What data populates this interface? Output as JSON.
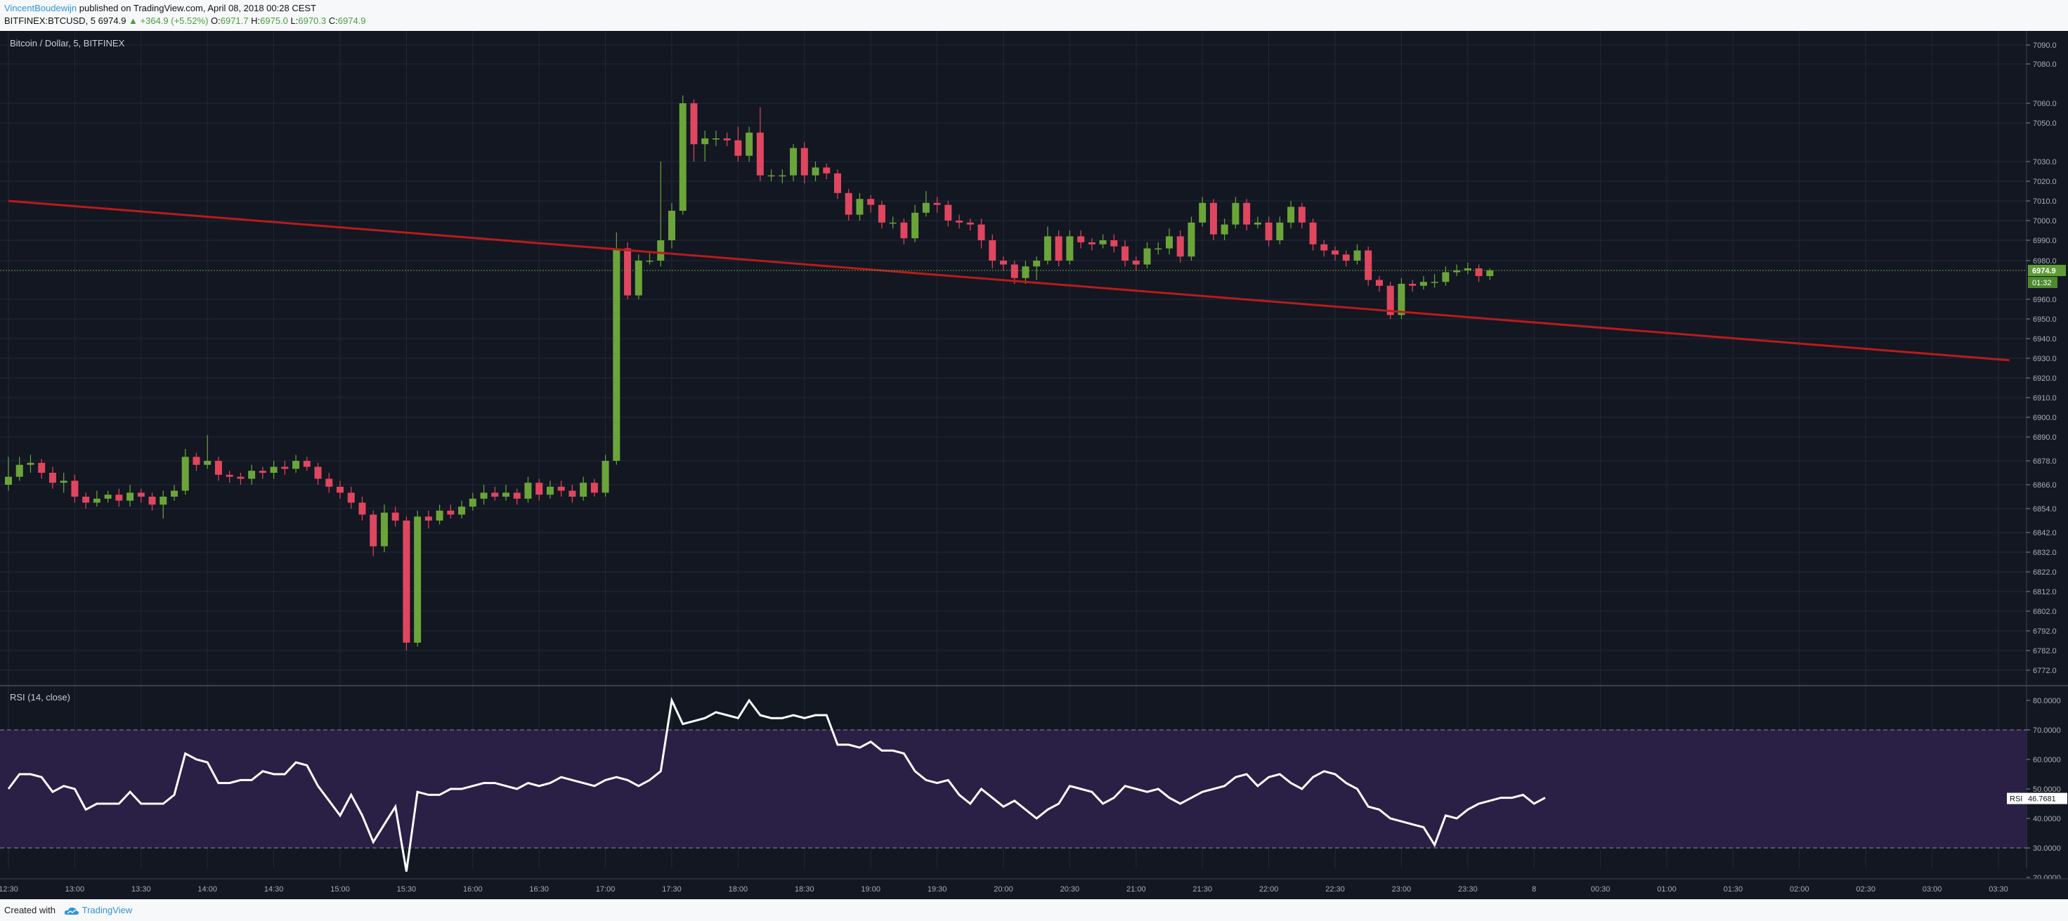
{
  "header": {
    "author": "VincentBoudewijn",
    "published": "published on TradingView.com, April 08, 2018 00:28 CEST",
    "symbol_line": "BITFINEX:BTCUSD, 5",
    "last": "6974.9",
    "change": "▲ +364.9 (+5.52%)",
    "o_label": "O:",
    "o_value": "6971.7",
    "h_label": "H:",
    "h_value": "6975.0",
    "l_label": "L:",
    "l_value": "6970.3",
    "c_label": "C:",
    "c_value": "6974.9"
  },
  "footer": {
    "created_with": "Created with",
    "brand": "TradingView"
  },
  "colors": {
    "background": "#131722",
    "up": "#6ba539",
    "down": "#e0465f",
    "trendline": "#b71c1c",
    "rsi_band": "#2a1f45",
    "rsi_line": "#ffffff"
  },
  "chart_data": [
    {
      "type": "candlestick",
      "title": "Bitcoin / Dollar, 5, BITFINEX",
      "x_ticks": [
        "12:30",
        "13:00",
        "13:30",
        "14:00",
        "14:30",
        "15:00",
        "15:30",
        "16:00",
        "16:30",
        "17:00",
        "17:30",
        "18:00",
        "18:30",
        "19:00",
        "19:30",
        "20:00",
        "20:30",
        "21:00",
        "21:30",
        "22:00",
        "22:30",
        "23:00",
        "23:30",
        "8",
        "00:30",
        "01:00",
        "01:30",
        "02:00",
        "02:30",
        "03:00",
        "03:30"
      ],
      "y_ticks": [
        "7090.0",
        "7080.0",
        "7060.0",
        "7050.0",
        "7030.0",
        "7020.0",
        "7010.0",
        "7000.0",
        "6990.0",
        "6980.0",
        "6960.0",
        "6950.0",
        "6940.0",
        "6930.0",
        "6920.0",
        "6910.0",
        "6900.0",
        "6890.0",
        "6878.0",
        "6866.0",
        "6854.0",
        "6842.0",
        "6832.0",
        "6822.0",
        "6812.0",
        "6802.0",
        "6792.0",
        "6782.0",
        "6772.0"
      ],
      "last_price_label": "6974.9",
      "countdown_label": "01:32",
      "trendline": {
        "start": {
          "x": "12:30",
          "y": 7010
        },
        "end": {
          "x": "03:35",
          "y": 6929
        }
      },
      "candles": [
        [
          6866,
          6870,
          6880,
          6863
        ],
        [
          6870,
          6876,
          6880,
          6868
        ],
        [
          6876,
          6877,
          6881,
          6872
        ],
        [
          6877,
          6872,
          6879,
          6869
        ],
        [
          6872,
          6867,
          6875,
          6864
        ],
        [
          6867,
          6868,
          6872,
          6862
        ],
        [
          6868,
          6860,
          6871,
          6857
        ],
        [
          6860,
          6857,
          6862,
          6854
        ],
        [
          6857,
          6859,
          6863,
          6855
        ],
        [
          6859,
          6861,
          6863,
          6857
        ],
        [
          6861,
          6858,
          6864,
          6855
        ],
        [
          6858,
          6862,
          6866,
          6855
        ],
        [
          6862,
          6860,
          6864,
          6857
        ],
        [
          6860,
          6856,
          6862,
          6853
        ],
        [
          6856,
          6860,
          6863,
          6849
        ],
        [
          6860,
          6863,
          6866,
          6858
        ],
        [
          6863,
          6880,
          6884,
          6861
        ],
        [
          6880,
          6876,
          6882,
          6873
        ],
        [
          6876,
          6878,
          6891,
          6874
        ],
        [
          6878,
          6871,
          6880,
          6868
        ],
        [
          6871,
          6870,
          6873,
          6867
        ],
        [
          6870,
          6869,
          6872,
          6866
        ],
        [
          6869,
          6873,
          6876,
          6866
        ],
        [
          6873,
          6872,
          6875,
          6869
        ],
        [
          6872,
          6875,
          6878,
          6869
        ],
        [
          6875,
          6874,
          6878,
          6871
        ],
        [
          6874,
          6878,
          6881,
          6872
        ],
        [
          6878,
          6875,
          6880,
          6873
        ],
        [
          6875,
          6869,
          6877,
          6866
        ],
        [
          6869,
          6865,
          6872,
          6862
        ],
        [
          6865,
          6862,
          6868,
          6859
        ],
        [
          6862,
          6857,
          6865,
          6854
        ],
        [
          6857,
          6851,
          6860,
          6848
        ],
        [
          6851,
          6835,
          6853,
          6830
        ],
        [
          6835,
          6852,
          6856,
          6832
        ],
        [
          6852,
          6848,
          6855,
          6845
        ],
        [
          6848,
          6786,
          6850,
          6782
        ],
        [
          6786,
          6850,
          6853,
          6784
        ],
        [
          6850,
          6848,
          6853,
          6844
        ],
        [
          6848,
          6853,
          6856,
          6846
        ],
        [
          6853,
          6851,
          6856,
          6849
        ],
        [
          6851,
          6855,
          6858,
          6849
        ],
        [
          6855,
          6859,
          6862,
          6853
        ],
        [
          6859,
          6862,
          6866,
          6856
        ],
        [
          6862,
          6860,
          6865,
          6858
        ],
        [
          6860,
          6862,
          6866,
          6858
        ],
        [
          6862,
          6859,
          6864,
          6856
        ],
        [
          6859,
          6867,
          6870,
          6857
        ],
        [
          6867,
          6861,
          6869,
          6858
        ],
        [
          6861,
          6865,
          6868,
          6859
        ],
        [
          6865,
          6863,
          6868,
          6860
        ],
        [
          6863,
          6860,
          6866,
          6857
        ],
        [
          6860,
          6867,
          6870,
          6858
        ],
        [
          6867,
          6862,
          6869,
          6860
        ],
        [
          6862,
          6878,
          6881,
          6860
        ],
        [
          6878,
          6986,
          6994,
          6876
        ],
        [
          6986,
          6962,
          6989,
          6960
        ],
        [
          6962,
          6980,
          6983,
          6960
        ],
        [
          6980,
          6980,
          6984,
          6978
        ],
        [
          6980,
          6990,
          7030,
          6977
        ],
        [
          6990,
          7005,
          7009,
          6986
        ],
        [
          7005,
          7060,
          7064,
          7003
        ],
        [
          7060,
          7039,
          7062,
          7030
        ],
        [
          7039,
          7042,
          7046,
          7030
        ],
        [
          7042,
          7042,
          7046,
          7038
        ],
        [
          7042,
          7041,
          7045,
          7038
        ],
        [
          7041,
          7033,
          7048,
          7030
        ],
        [
          7033,
          7045,
          7048,
          7030
        ],
        [
          7045,
          7023,
          7058,
          7020
        ],
        [
          7023,
          7023,
          7026,
          7020
        ],
        [
          7023,
          7023,
          7026,
          7019
        ],
        [
          7023,
          7037,
          7039,
          7020
        ],
        [
          7037,
          7023,
          7040,
          7019
        ],
        [
          7023,
          7027,
          7030,
          7020
        ],
        [
          7027,
          7024,
          7029,
          7021
        ],
        [
          7024,
          7014,
          7026,
          7011
        ],
        [
          7014,
          7003,
          7016,
          7000
        ],
        [
          7003,
          7011,
          7014,
          7000
        ],
        [
          7011,
          7008,
          7013,
          7004
        ],
        [
          7008,
          6999,
          7010,
          6996
        ],
        [
          6999,
          6999,
          7002,
          6996
        ],
        [
          6999,
          6991,
          7001,
          6988
        ],
        [
          6991,
          7004,
          7008,
          6989
        ],
        [
          7004,
          7009,
          7015,
          7002
        ],
        [
          7009,
          7008,
          7012,
          7004
        ],
        [
          7008,
          7000,
          7010,
          6997
        ],
        [
          7000,
          6999,
          7003,
          6996
        ],
        [
          6999,
          6998,
          7001,
          6995
        ],
        [
          6998,
          6990,
          7001,
          6986
        ],
        [
          6990,
          6980,
          6993,
          6976
        ],
        [
          6980,
          6978,
          6982,
          6975
        ],
        [
          6978,
          6971,
          6980,
          6968
        ],
        [
          6971,
          6977,
          6980,
          6968
        ],
        [
          6977,
          6980,
          6982,
          6970
        ],
        [
          6980,
          6992,
          6997,
          6978
        ],
        [
          6992,
          6980,
          6995,
          6977
        ],
        [
          6980,
          6992,
          6995,
          6978
        ],
        [
          6992,
          6989,
          6995,
          6986
        ],
        [
          6989,
          6988,
          6991,
          6985
        ],
        [
          6988,
          6990,
          6993,
          6986
        ],
        [
          6990,
          6987,
          6993,
          6984
        ],
        [
          6987,
          6980,
          6990,
          6977
        ],
        [
          6980,
          6978,
          6982,
          6975
        ],
        [
          6978,
          6986,
          6989,
          6976
        ],
        [
          6986,
          6986,
          6989,
          6983
        ],
        [
          6986,
          6992,
          6996,
          6983
        ],
        [
          6992,
          6982,
          6995,
          6979
        ],
        [
          6982,
          6999,
          7002,
          6980
        ],
        [
          6999,
          7009,
          7012,
          6997
        ],
        [
          7009,
          6993,
          7011,
          6990
        ],
        [
          6993,
          6998,
          7001,
          6990
        ],
        [
          6998,
          7009,
          7012,
          6996
        ],
        [
          7009,
          6998,
          7011,
          6995
        ],
        [
          6998,
          6999,
          7002,
          6996
        ],
        [
          6999,
          6990,
          7002,
          6987
        ],
        [
          6990,
          6999,
          7002,
          6988
        ],
        [
          6999,
          7007,
          7010,
          6996
        ],
        [
          7007,
          6999,
          7009,
          6996
        ],
        [
          6999,
          6988,
          7001,
          6985
        ],
        [
          6988,
          6985,
          6990,
          6982
        ],
        [
          6985,
          6983,
          6987,
          6980
        ],
        [
          6983,
          6980,
          6985,
          6977
        ],
        [
          6980,
          6985,
          6988,
          6978
        ],
        [
          6985,
          6970,
          6987,
          6967
        ],
        [
          6970,
          6967,
          6972,
          6964
        ],
        [
          6967,
          6952,
          6969,
          6950
        ],
        [
          6952,
          6968,
          6971,
          6950
        ],
        [
          6968,
          6967,
          6970,
          6964
        ],
        [
          6967,
          6969,
          6972,
          6965
        ],
        [
          6969,
          6969,
          6973,
          6966
        ],
        [
          6969,
          6974,
          6977,
          6967
        ],
        [
          6974,
          6975,
          6978,
          6972
        ],
        [
          6975,
          6976,
          6979,
          6973
        ],
        [
          6976,
          6972,
          6978,
          6969
        ],
        [
          6972,
          6975,
          6976,
          6970
        ]
      ]
    },
    {
      "type": "line",
      "title": "RSI (14, close)",
      "y_ticks": [
        "80.0000",
        "70.0000",
        "60.0000",
        "50.0000",
        "40.0000",
        "30.0000",
        "20.0000"
      ],
      "ylim": [
        20,
        80
      ],
      "band": [
        30,
        70
      ],
      "last_label": "RSI",
      "last_value": "46.7681",
      "series": [
        {
          "values": [
            50,
            55,
            55,
            54,
            49,
            51,
            50,
            43,
            45,
            45,
            45,
            49,
            45,
            45,
            45,
            48,
            62,
            60,
            59,
            52,
            52,
            53,
            53,
            56,
            55,
            55,
            59,
            58,
            51,
            46,
            41,
            48,
            41,
            32,
            38,
            44,
            22,
            49,
            48,
            48,
            50,
            50,
            51,
            52,
            52,
            51,
            50,
            52,
            51,
            52,
            54,
            53,
            52,
            51,
            53,
            54,
            53,
            51,
            53,
            56,
            80,
            72,
            73,
            74,
            76,
            75,
            74,
            80,
            75,
            74,
            74,
            75,
            74,
            75,
            75,
            65,
            65,
            64,
            66,
            63,
            63,
            62,
            56,
            53,
            52,
            53,
            48,
            45,
            50,
            47,
            44,
            46,
            43,
            40,
            43,
            45,
            51,
            50,
            49,
            45,
            47,
            51,
            50,
            49,
            50,
            47,
            45,
            47,
            49,
            50,
            51,
            54,
            55,
            51,
            54,
            55,
            52,
            50,
            54,
            56,
            55,
            52,
            50,
            44,
            43,
            40,
            39,
            38,
            37,
            31,
            41,
            40,
            43,
            45,
            46,
            47,
            47,
            48,
            45,
            47
          ]
        }
      ]
    }
  ]
}
